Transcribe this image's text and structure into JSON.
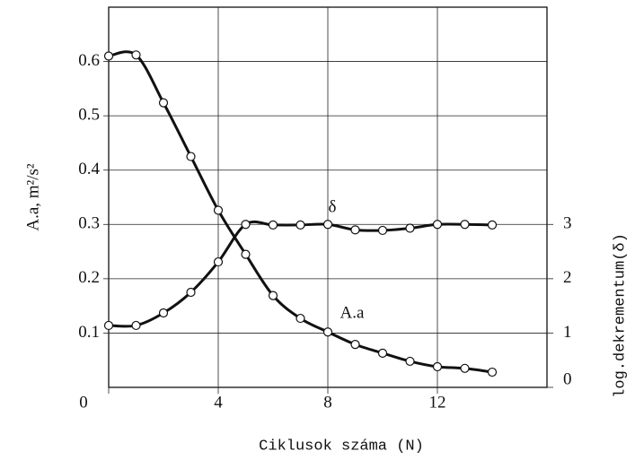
{
  "chart_data": {
    "type": "line",
    "x_label": "Ciklusok száma (N)",
    "y_label": "A.a, m²/s²",
    "y2_label": "log.dekrementum(δ)",
    "x": [
      0,
      1,
      2,
      3,
      4,
      5,
      6,
      7,
      8,
      9,
      10,
      11,
      12,
      13,
      14
    ],
    "xlim": [
      0,
      16
    ],
    "xticks": [
      0,
      4,
      8,
      12
    ],
    "ylim": [
      0,
      0.7
    ],
    "yticks": [
      0.1,
      0.2,
      0.3,
      0.4,
      0.5,
      0.6
    ],
    "y2lim": [
      0,
      7
    ],
    "y2ticks": [
      0,
      1,
      2,
      3
    ],
    "grid": true,
    "series": [
      {
        "name": "A.a",
        "color": "#111111",
        "values": [
          0.61,
          0.612,
          0.524,
          0.425,
          0.326,
          0.245,
          0.169,
          0.127,
          0.102,
          0.079,
          0.063,
          0.048,
          0.038,
          0.035,
          0.028
        ]
      },
      {
        "name": "δ",
        "color": "#111111",
        "axis": "y2",
        "values": [
          1.14,
          1.14,
          1.37,
          1.75,
          2.31,
          3.0,
          2.99,
          2.99,
          3.0,
          2.9,
          2.89,
          2.93,
          3.0,
          3.0,
          2.99
        ]
      }
    ]
  }
}
